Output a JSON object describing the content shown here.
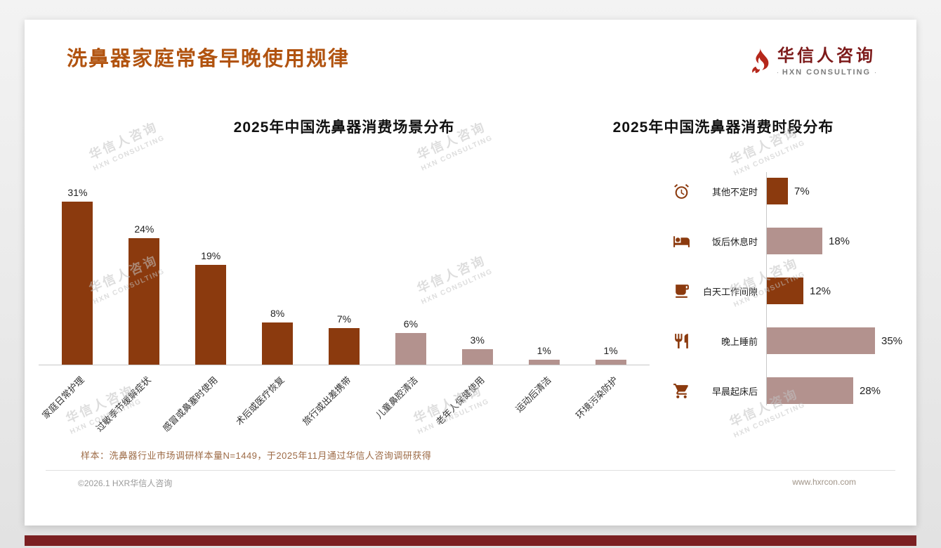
{
  "page": {
    "title": "洗鼻器家庭常备早晚使用规律",
    "sample_note": "样本：洗鼻器行业市场调研样本量N=1449，于2025年11月通过华信人咨询调研获得",
    "copyright": "©2026.1 HXR华信人咨询",
    "website": "www.hxrcon.com"
  },
  "logo": {
    "name": "华信人咨询",
    "subtitle": "HXN CONSULTING"
  },
  "watermark": {
    "line1": "华信人咨询",
    "line2": "HXN CONSULTING"
  },
  "colors": {
    "title": "#b1530f",
    "dark_bar": "#8b3a0e",
    "light_bar": "#b3928e",
    "logo_red": "#b5271b",
    "logo_text": "#7d1a1a",
    "accent_bar": "#7b2022",
    "axis": "#c8c8c8"
  },
  "chart_data": [
    {
      "type": "bar",
      "title": "2025年中国洗鼻器消费场景分布",
      "categories": [
        "家庭日常护理",
        "过敏季节缓解症状",
        "感冒或鼻塞时使用",
        "术后或医疗恢复",
        "旅行或出差携带",
        "儿童鼻腔清洁",
        "老年人保健使用",
        "运动后清洁",
        "环境污染防护"
      ],
      "values": [
        31,
        24,
        19,
        8,
        7,
        6,
        3,
        1,
        1
      ],
      "bar_styles": [
        "dark",
        "dark",
        "dark",
        "dark",
        "dark",
        "light",
        "light",
        "light",
        "light"
      ],
      "value_suffix": "%",
      "xlabel": "",
      "ylabel": "",
      "ylim": [
        0,
        35
      ],
      "grid": false,
      "value_labels_shown": true,
      "tick_label_rotation": 45
    },
    {
      "type": "bar_horizontal",
      "title": "2025年中国洗鼻器消费时段分布",
      "categories": [
        "其他不定时",
        "饭后休息时",
        "白天工作间隙",
        "晚上睡前",
        "早晨起床后"
      ],
      "values": [
        7,
        18,
        12,
        35,
        28
      ],
      "bar_styles": [
        "dark",
        "light",
        "dark",
        "light",
        "light"
      ],
      "icons": [
        "alarm-clock-icon",
        "bed-icon",
        "coffee-cup-icon",
        "dining-icon",
        "shopping-cart-icon"
      ],
      "value_suffix": "%",
      "xlim": [
        0,
        40
      ],
      "grid": false,
      "value_labels_shown": true
    }
  ]
}
